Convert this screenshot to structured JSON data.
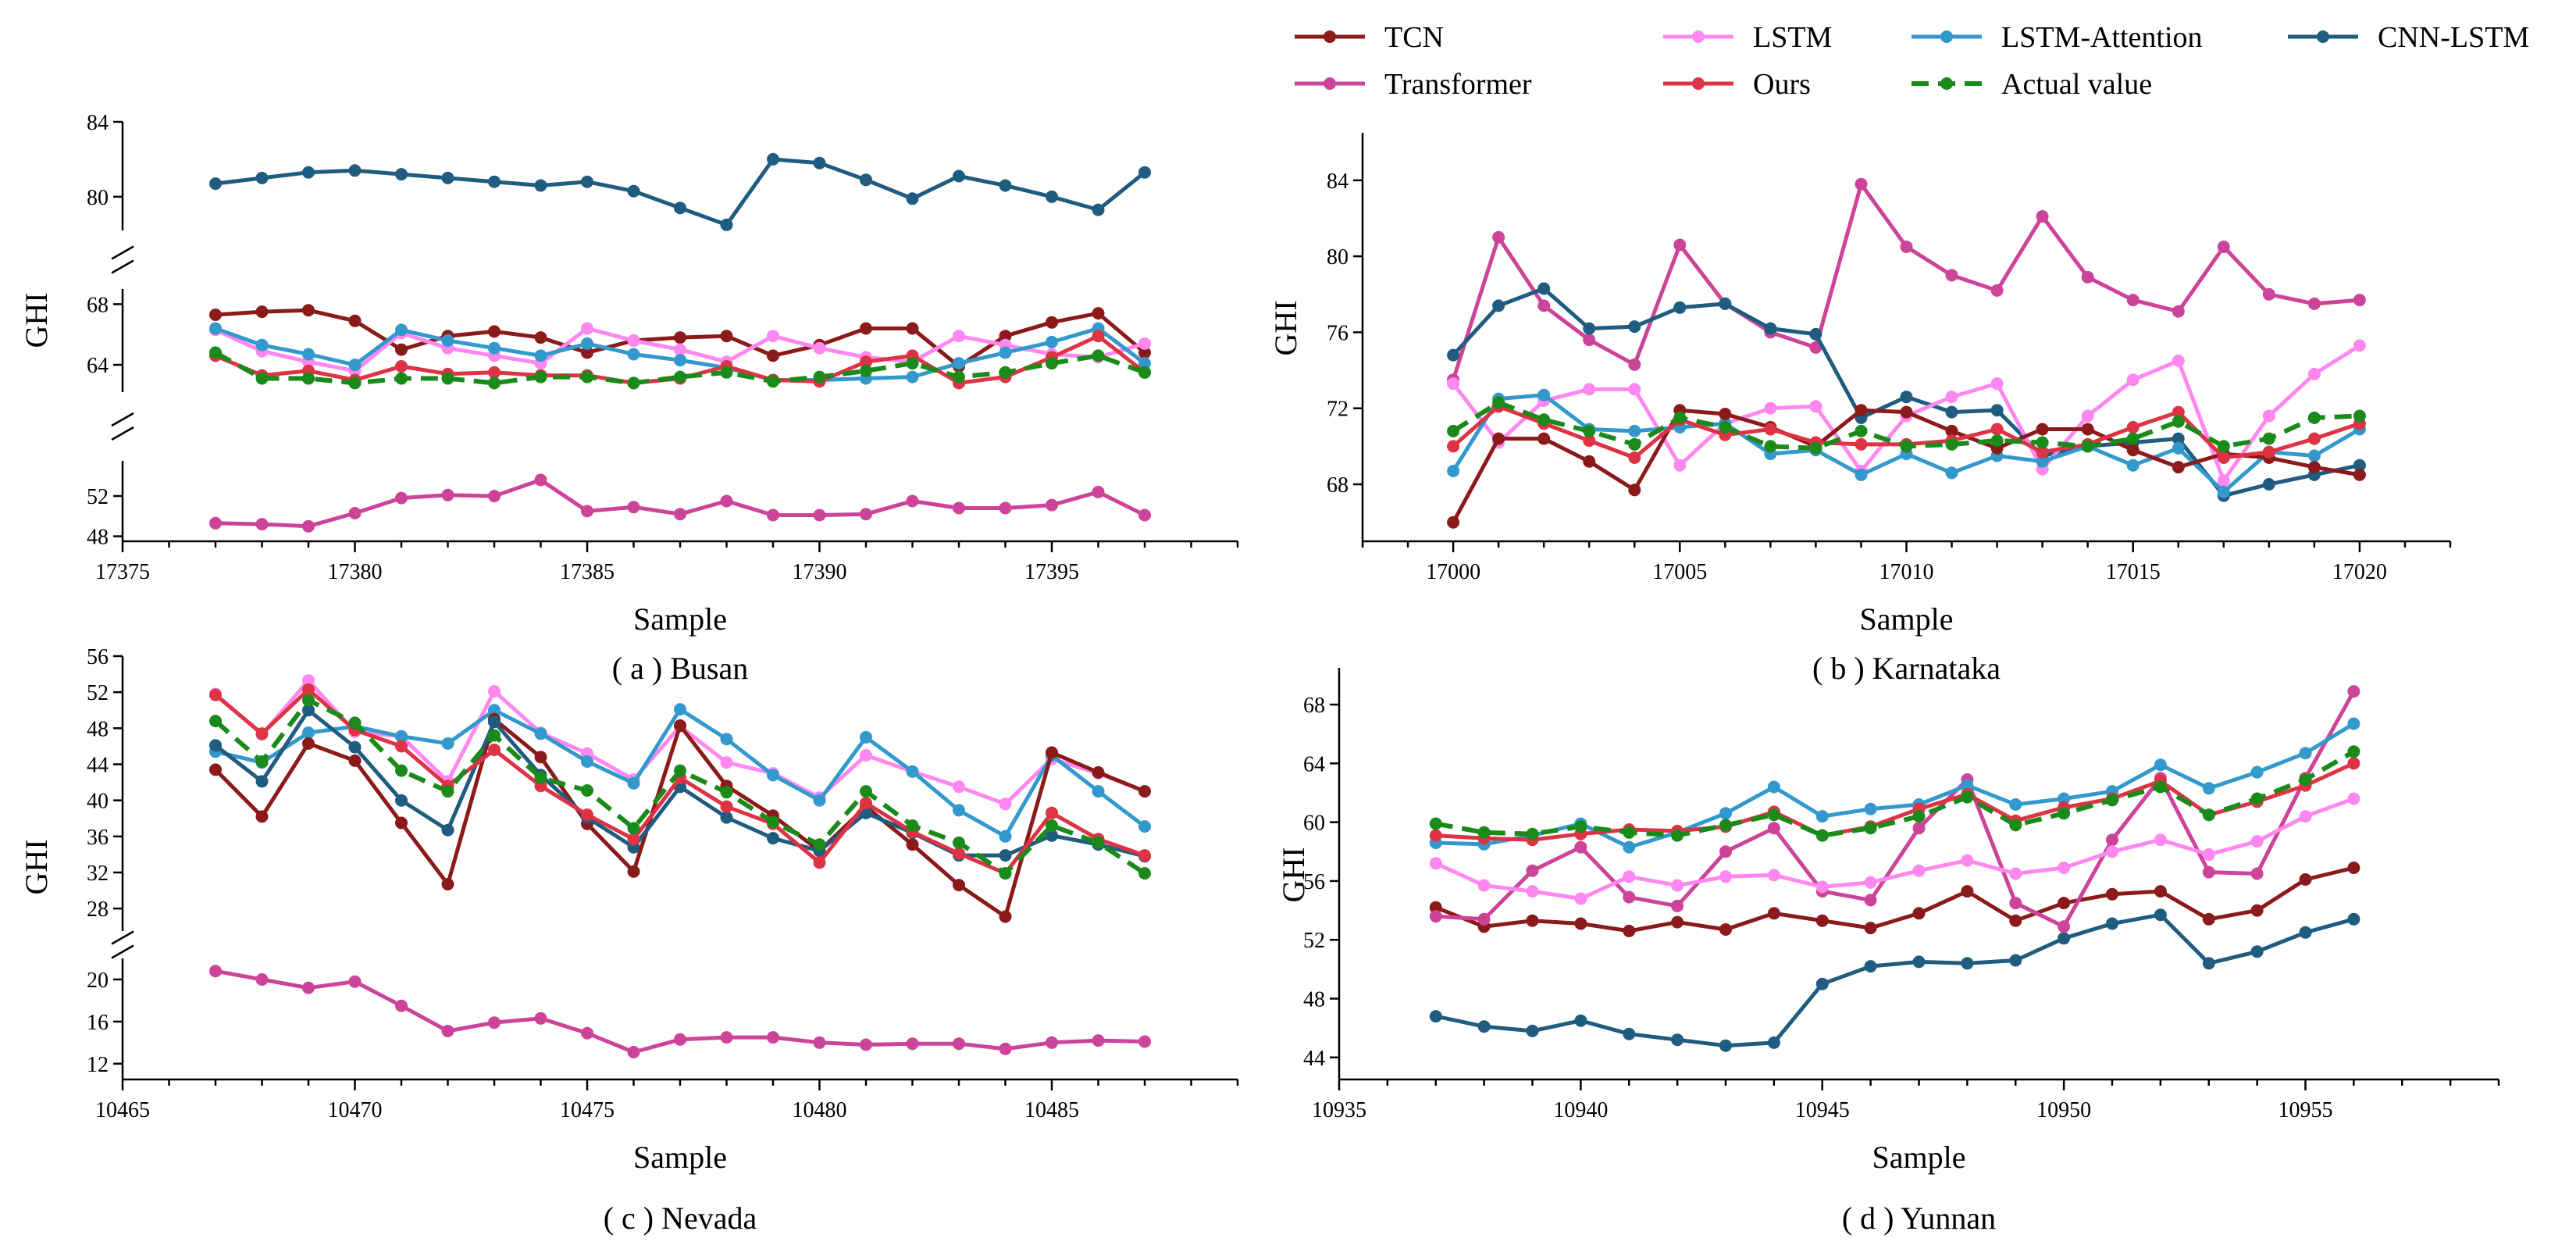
{
  "legend": {
    "entries": [
      {
        "name": "TCN",
        "color": "#8B1A1A",
        "dashed": false
      },
      {
        "name": "LSTM",
        "color": "#FF88F0",
        "dashed": false
      },
      {
        "name": "LSTM-Attention",
        "color": "#3399CC",
        "dashed": false
      },
      {
        "name": "CNN-LSTM",
        "color": "#1F5C80",
        "dashed": false
      },
      {
        "name": "Transformer",
        "color": "#CC4499",
        "dashed": false
      },
      {
        "name": "Ours",
        "color": "#DD3344",
        "dashed": false
      },
      {
        "name": "Actual value",
        "color": "#1A8A1A",
        "dashed": true
      }
    ]
  },
  "chart_data": [
    {
      "type": "line",
      "caption": "( a ) Busan",
      "xlabel": "Sample",
      "ylabel": "GHI",
      "xlim": [
        17375,
        17399
      ],
      "xticks": [
        "17375",
        "17380",
        "17385",
        "17390",
        "17395"
      ],
      "broken_axis": [
        {
          "ylim": [
            47.5,
            55.5
          ],
          "yticks": [
            "48",
            "52"
          ]
        },
        {
          "ylim": [
            62.2,
            69
          ],
          "yticks": [
            "64",
            "68"
          ]
        },
        {
          "ylim": [
            78.2,
            84
          ],
          "yticks": [
            "80",
            "84"
          ]
        }
      ],
      "x": [
        17377,
        17378,
        17379,
        17380,
        17381,
        17382,
        17383,
        17384,
        17385,
        17386,
        17387,
        17388,
        17389,
        17390,
        17391,
        17392,
        17393,
        17394,
        17395,
        17396,
        17397
      ],
      "series": [
        {
          "name": "CNN-LSTM",
          "values": [
            80.7,
            81.0,
            81.3,
            81.4,
            81.2,
            81.0,
            80.8,
            80.6,
            80.8,
            80.3,
            79.4,
            78.5,
            82.0,
            81.8,
            80.9,
            79.9,
            81.1,
            80.6,
            80.0,
            79.3,
            81.3
          ]
        },
        {
          "name": "TCN",
          "values": [
            67.3,
            67.5,
            67.6,
            66.9,
            65.0,
            65.9,
            66.2,
            65.8,
            64.8,
            65.6,
            65.8,
            65.9,
            64.6,
            65.3,
            66.4,
            66.4,
            63.9,
            65.9,
            66.8,
            67.4,
            64.8
          ]
        },
        {
          "name": "LSTM",
          "values": [
            66.3,
            64.9,
            64.2,
            63.6,
            66.1,
            65.1,
            64.6,
            64.1,
            66.4,
            65.6,
            65.0,
            64.2,
            65.9,
            65.1,
            64.5,
            64.2,
            65.9,
            65.3,
            64.7,
            64.5,
            65.4
          ]
        },
        {
          "name": "LSTM-Attention",
          "values": [
            66.4,
            65.3,
            64.7,
            64.0,
            66.3,
            65.6,
            65.1,
            64.6,
            65.4,
            64.7,
            64.3,
            63.8,
            63.0,
            63.0,
            63.1,
            63.2,
            64.1,
            64.8,
            65.5,
            66.4,
            64.1
          ]
        },
        {
          "name": "Ours",
          "values": [
            64.6,
            63.3,
            63.6,
            63.0,
            63.9,
            63.4,
            63.5,
            63.3,
            63.3,
            62.8,
            63.1,
            63.9,
            63.0,
            62.9,
            64.2,
            64.6,
            62.8,
            63.2,
            64.5,
            65.9,
            63.5
          ]
        },
        {
          "name": "Actual value",
          "values": [
            64.8,
            63.1,
            63.1,
            62.8,
            63.1,
            63.1,
            62.8,
            63.2,
            63.2,
            62.8,
            63.2,
            63.5,
            62.9,
            63.2,
            63.6,
            64.1,
            63.2,
            63.5,
            64.1,
            64.6,
            63.5
          ]
        },
        {
          "name": "Transformer",
          "values": [
            49.3,
            49.2,
            49.0,
            50.3,
            51.8,
            52.1,
            52.0,
            53.6,
            50.5,
            50.9,
            50.2,
            51.5,
            50.1,
            50.1,
            50.2,
            51.5,
            50.8,
            50.8,
            51.1,
            52.4,
            50.1
          ]
        }
      ]
    },
    {
      "type": "line",
      "caption": "( b ) Karnataka",
      "xlabel": "Sample",
      "ylabel": "GHI",
      "xlim": [
        16998,
        17022
      ],
      "xticks": [
        "17000",
        "17005",
        "17010",
        "17015",
        "17020"
      ],
      "ylim": [
        65,
        86.5
      ],
      "yticks": [
        "68",
        "72",
        "76",
        "80",
        "84"
      ],
      "x": [
        17000,
        17001,
        17002,
        17003,
        17004,
        17005,
        17006,
        17007,
        17008,
        17009,
        17010,
        17011,
        17012,
        17013,
        17014,
        17015,
        17016,
        17017,
        17018,
        17019,
        17020
      ],
      "series": [
        {
          "name": "Transformer",
          "values": [
            73.5,
            81.0,
            77.4,
            75.6,
            74.3,
            80.6,
            77.5,
            76.0,
            75.2,
            83.8,
            80.5,
            79.0,
            78.2,
            82.1,
            78.9,
            77.7,
            77.1,
            80.5,
            78.0,
            77.5,
            77.7
          ]
        },
        {
          "name": "CNN-LSTM",
          "values": [
            74.8,
            77.4,
            78.3,
            76.2,
            76.3,
            77.3,
            77.5,
            76.2,
            75.9,
            71.5,
            72.6,
            71.8,
            71.9,
            69.5,
            70.0,
            70.2,
            70.4,
            67.4,
            68.0,
            68.5,
            69.0
          ]
        },
        {
          "name": "LSTM",
          "values": [
            73.3,
            70.2,
            72.4,
            73.0,
            73.0,
            69.0,
            71.2,
            72.0,
            72.1,
            68.7,
            71.6,
            72.6,
            73.3,
            68.8,
            71.6,
            73.5,
            74.5,
            68.2,
            71.6,
            73.8,
            75.3
          ]
        },
        {
          "name": "LSTM-Attention",
          "values": [
            68.7,
            72.5,
            72.7,
            70.9,
            70.8,
            71.0,
            71.2,
            69.6,
            69.8,
            68.5,
            69.6,
            68.6,
            69.5,
            69.2,
            70.0,
            69.0,
            69.9,
            67.6,
            69.7,
            69.5,
            70.9
          ]
        },
        {
          "name": "TCN",
          "values": [
            66.0,
            70.4,
            70.4,
            69.2,
            67.7,
            71.9,
            71.7,
            71.0,
            70.0,
            71.9,
            71.8,
            70.8,
            69.9,
            70.9,
            70.9,
            69.8,
            68.9,
            69.6,
            69.4,
            68.9,
            68.5
          ]
        },
        {
          "name": "Ours",
          "values": [
            70.0,
            72.1,
            71.2,
            70.3,
            69.4,
            71.4,
            70.6,
            70.9,
            70.2,
            70.1,
            70.1,
            70.3,
            70.9,
            69.7,
            70.1,
            71.0,
            71.8,
            69.4,
            69.7,
            70.4,
            71.2
          ]
        },
        {
          "name": "Actual value",
          "values": [
            70.8,
            72.3,
            71.4,
            70.8,
            70.1,
            71.5,
            71.0,
            70.0,
            69.9,
            70.8,
            70.0,
            70.1,
            70.3,
            70.2,
            70.0,
            70.4,
            71.3,
            70.0,
            70.4,
            71.5,
            71.6
          ]
        }
      ]
    },
    {
      "type": "line",
      "caption": "( c ) Nevada",
      "xlabel": "Sample",
      "ylabel": "GHI",
      "xlim": [
        10465,
        10489
      ],
      "xticks": [
        "10465",
        "10470",
        "10475",
        "10480",
        "10485"
      ],
      "broken_axis": [
        {
          "ylim": [
            10.5,
            22
          ],
          "yticks": [
            "12",
            "16",
            "20"
          ]
        },
        {
          "ylim": [
            25.5,
            56
          ],
          "yticks": [
            "28",
            "32",
            "36",
            "40",
            "44",
            "48",
            "52",
            "56"
          ]
        }
      ],
      "x": [
        10467,
        10468,
        10469,
        10470,
        10471,
        10472,
        10473,
        10474,
        10475,
        10476,
        10477,
        10478,
        10479,
        10480,
        10481,
        10482,
        10483,
        10484,
        10485,
        10486,
        10487
      ],
      "series": [
        {
          "name": "Transformer",
          "values": [
            20.8,
            20.0,
            19.2,
            19.8,
            17.5,
            15.1,
            15.9,
            16.3,
            14.9,
            13.1,
            14.3,
            14.5,
            14.5,
            14.0,
            13.8,
            13.9,
            13.9,
            13.4,
            14.0,
            14.2,
            14.1
          ]
        },
        {
          "name": "LSTM",
          "values": [
            51.8,
            47.3,
            53.3,
            47.6,
            47.1,
            42.1,
            52.1,
            47.5,
            45.2,
            42.3,
            48.2,
            44.2,
            43.0,
            40.3,
            45.0,
            43.2,
            41.5,
            39.6,
            44.6,
            43.0,
            41.0
          ]
        },
        {
          "name": "LSTM-Attention",
          "values": [
            45.4,
            44.2,
            47.5,
            48.2,
            47.1,
            46.3,
            50.0,
            47.4,
            44.3,
            41.9,
            50.1,
            46.8,
            42.8,
            40.0,
            47.0,
            43.2,
            38.9,
            36.0,
            45.0,
            41.0,
            37.1
          ]
        },
        {
          "name": "TCN",
          "values": [
            43.4,
            38.2,
            46.3,
            44.4,
            37.5,
            30.7,
            49.0,
            44.8,
            37.4,
            32.1,
            48.3,
            41.6,
            38.3,
            34.4,
            39.3,
            35.1,
            30.6,
            27.1,
            45.3,
            43.1,
            41.0
          ]
        },
        {
          "name": "CNN-LSTM",
          "values": [
            46.1,
            42.1,
            50.0,
            45.9,
            40.0,
            36.7,
            48.7,
            42.8,
            38.1,
            34.8,
            41.5,
            38.1,
            35.8,
            34.4,
            38.6,
            36.4,
            33.9,
            33.9,
            36.1,
            35.1,
            33.8
          ]
        },
        {
          "name": "Ours",
          "values": [
            51.7,
            47.4,
            52.3,
            47.8,
            46.0,
            41.6,
            45.6,
            41.6,
            38.4,
            35.7,
            42.5,
            39.3,
            37.4,
            33.1,
            39.7,
            36.5,
            34.1,
            31.9,
            38.6,
            35.7,
            33.9
          ]
        },
        {
          "name": "Actual value",
          "values": [
            48.8,
            44.3,
            51.1,
            48.6,
            43.3,
            41.0,
            47.2,
            42.5,
            41.1,
            36.9,
            43.3,
            40.9,
            37.6,
            35.1,
            41.0,
            37.2,
            35.3,
            31.9,
            37.2,
            35.3,
            31.9
          ]
        }
      ]
    },
    {
      "type": "line",
      "caption": "( d ) Yunnan",
      "xlabel": "Sample",
      "ylabel": "GHI",
      "xlim": [
        10935,
        10959
      ],
      "xticks": [
        "10935",
        "10940",
        "10945",
        "10950",
        "10955"
      ],
      "ylim": [
        42.5,
        70.5
      ],
      "yticks": [
        "44",
        "48",
        "52",
        "56",
        "60",
        "64",
        "68"
      ],
      "x": [
        10937,
        10938,
        10939,
        10940,
        10941,
        10942,
        10943,
        10944,
        10945,
        10946,
        10947,
        10948,
        10949,
        10950,
        10951,
        10952,
        10953,
        10954,
        10955,
        10956
      ],
      "series": [
        {
          "name": "CNN-LSTM",
          "values": [
            46.8,
            46.1,
            45.8,
            46.5,
            45.6,
            45.2,
            44.8,
            45.0,
            49.0,
            50.2,
            50.5,
            50.4,
            50.6,
            52.1,
            53.1,
            53.7,
            50.4,
            51.2,
            52.5,
            53.4
          ]
        },
        {
          "name": "TCN",
          "values": [
            54.2,
            52.9,
            53.3,
            53.1,
            52.6,
            53.2,
            52.7,
            53.8,
            53.3,
            52.8,
            53.8,
            55.3,
            53.3,
            54.5,
            55.1,
            55.3,
            53.4,
            54.0,
            56.1,
            56.9
          ]
        },
        {
          "name": "Transformer",
          "values": [
            53.6,
            53.4,
            56.7,
            58.3,
            54.9,
            54.3,
            58.0,
            59.6,
            55.3,
            54.7,
            59.6,
            62.9,
            54.5,
            52.9,
            58.8,
            63.0,
            56.6,
            56.5,
            63.0,
            68.9
          ]
        },
        {
          "name": "LSTM",
          "values": [
            57.2,
            55.7,
            55.3,
            54.8,
            56.3,
            55.7,
            56.3,
            56.4,
            55.6,
            55.9,
            56.7,
            57.4,
            56.5,
            56.9,
            58.0,
            58.8,
            57.8,
            58.7,
            60.4,
            61.6
          ]
        },
        {
          "name": "LSTM-Attention",
          "values": [
            58.6,
            58.5,
            59.1,
            59.9,
            58.3,
            59.3,
            60.6,
            62.4,
            60.4,
            60.9,
            61.2,
            62.5,
            61.2,
            61.6,
            62.1,
            63.9,
            62.3,
            63.4,
            64.7,
            66.7
          ]
        },
        {
          "name": "Ours",
          "values": [
            59.1,
            58.9,
            58.8,
            59.2,
            59.5,
            59.4,
            59.7,
            60.7,
            59.1,
            59.7,
            60.9,
            61.9,
            60.1,
            61.0,
            61.6,
            62.8,
            60.5,
            61.4,
            62.5,
            64.0
          ]
        },
        {
          "name": "Actual value",
          "values": [
            59.9,
            59.3,
            59.2,
            59.7,
            59.3,
            59.1,
            59.8,
            60.5,
            59.1,
            59.6,
            60.4,
            61.7,
            59.8,
            60.6,
            61.5,
            62.4,
            60.5,
            61.6,
            62.9,
            64.8
          ]
        }
      ]
    }
  ]
}
